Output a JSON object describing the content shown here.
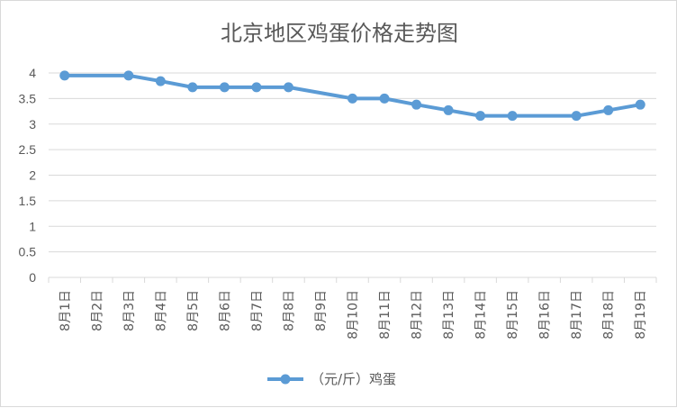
{
  "chart_data": {
    "type": "line",
    "title": "北京地区鸡蛋价格走势图",
    "xlabel": "",
    "ylabel": "",
    "categories": [
      "8月1日",
      "8月2日",
      "8月3日",
      "8月4日",
      "8月5日",
      "8月6日",
      "8月7日",
      "8月8日",
      "8月9日",
      "8月10日",
      "8月11日",
      "8月12日",
      "8月13日",
      "8月14日",
      "8月15日",
      "8月16日",
      "8月17日",
      "8月18日",
      "8月19日"
    ],
    "series": [
      {
        "name": "（元/斤）鸡蛋",
        "values": [
          3.95,
          null,
          3.95,
          3.84,
          3.72,
          3.72,
          3.72,
          3.72,
          null,
          3.5,
          3.5,
          3.38,
          3.27,
          3.16,
          3.16,
          null,
          3.16,
          3.27,
          3.38
        ]
      }
    ],
    "ylim": [
      0,
      4
    ],
    "yticks": [
      "0",
      "0.5",
      "1",
      "1.5",
      "2",
      "2.5",
      "3",
      "3.5",
      "4"
    ],
    "grid": true,
    "legend_position": "bottom",
    "colors": {
      "series": "#5b9bd5",
      "grid": "#d9d9d9",
      "text": "#595959"
    }
  }
}
